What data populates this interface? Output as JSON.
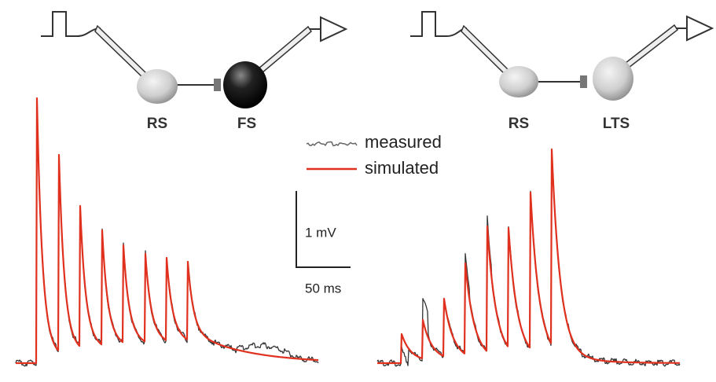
{
  "left_circuit": {
    "pre": "RS",
    "post": "FS"
  },
  "legend": {
    "measured": "measured",
    "simulated": "simulated"
  },
  "scale_bar": {
    "voltage": "1 mV",
    "time": "50 ms"
  },
  "right_circuit": {
    "pre": "RS",
    "post": "LTS"
  }
}
